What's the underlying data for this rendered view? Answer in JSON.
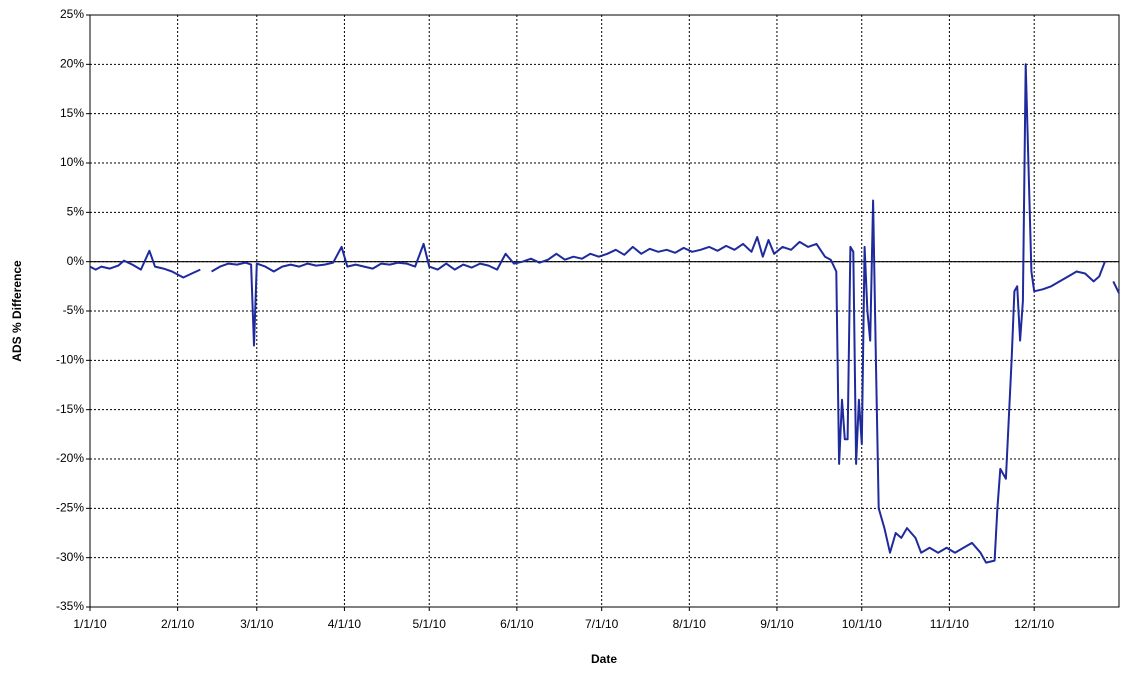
{
  "chart_data": {
    "type": "line",
    "xlabel": "Date",
    "ylabel": "ADS % Difference",
    "xlim": [
      "1/1/10",
      "12/31/10"
    ],
    "xticks": [
      "1/1/10",
      "2/1/10",
      "3/1/10",
      "4/1/10",
      "5/1/10",
      "6/1/10",
      "7/1/10",
      "8/1/10",
      "9/1/10",
      "10/1/10",
      "11/1/10",
      "12/1/10"
    ],
    "ylim": [
      -35,
      25
    ],
    "yticks": [
      {
        "value": -35,
        "label": "-35%"
      },
      {
        "value": -30,
        "label": "-30%"
      },
      {
        "value": -25,
        "label": "-25%"
      },
      {
        "value": -20,
        "label": "-20%"
      },
      {
        "value": -15,
        "label": "-15%"
      },
      {
        "value": -10,
        "label": "-10%"
      },
      {
        "value": -5,
        "label": "-5%"
      },
      {
        "value": 0,
        "label": "0%"
      },
      {
        "value": 5,
        "label": "5%"
      },
      {
        "value": 10,
        "label": "10%"
      },
      {
        "value": 15,
        "label": "15%"
      },
      {
        "value": 20,
        "label": "20%"
      },
      {
        "value": 25,
        "label": "25%"
      }
    ],
    "grid": true,
    "x": [
      "1/1/10",
      "1/3/10",
      "1/5/10",
      "1/8/10",
      "1/11/10",
      "1/13/10",
      "1/16/10",
      "1/19/10",
      "1/22/10",
      "1/24/10",
      "1/27/10",
      "1/30/10",
      "2/3/10",
      "2/6/10",
      "2/9/10",
      "2/11/10",
      "2/13/10",
      "2/16/10",
      "2/19/10",
      "2/22/10",
      "2/25/10",
      "2/27/10",
      "2/28/10",
      "3/1/10",
      "3/4/10",
      "3/7/10",
      "3/10/10",
      "3/13/10",
      "3/16/10",
      "3/19/10",
      "3/22/10",
      "3/25/10",
      "3/28/10",
      "3/31/10",
      "4/2/10",
      "4/5/10",
      "4/8/10",
      "4/11/10",
      "4/14/10",
      "4/17/10",
      "4/20/10",
      "4/23/10",
      "4/26/10",
      "4/29/10",
      "5/1/10",
      "5/4/10",
      "5/7/10",
      "5/10/10",
      "5/13/10",
      "5/16/10",
      "5/19/10",
      "5/22/10",
      "5/25/10",
      "5/28/10",
      "5/31/10",
      "6/3/10",
      "6/6/10",
      "6/9/10",
      "6/12/10",
      "6/15/10",
      "6/18/10",
      "6/21/10",
      "6/24/10",
      "6/27/10",
      "6/30/10",
      "7/3/10",
      "7/6/10",
      "7/9/10",
      "7/12/10",
      "7/15/10",
      "7/18/10",
      "7/21/10",
      "7/24/10",
      "7/27/10",
      "7/30/10",
      "8/2/10",
      "8/5/10",
      "8/8/10",
      "8/11/10",
      "8/14/10",
      "8/17/10",
      "8/20/10",
      "8/23/10",
      "8/25/10",
      "8/27/10",
      "8/29/10",
      "8/31/10",
      "9/3/10",
      "9/6/10",
      "9/9/10",
      "9/12/10",
      "9/15/10",
      "9/18/10",
      "9/20/10",
      "9/22/10",
      "9/23/10",
      "9/24/10",
      "9/25/10",
      "9/26/10",
      "9/27/10",
      "9/28/10",
      "9/29/10",
      "9/30/10",
      "10/1/10",
      "10/2/10",
      "10/3/10",
      "10/4/10",
      "10/5/10",
      "10/6/10",
      "10/7/10",
      "10/9/10",
      "10/11/10",
      "10/13/10",
      "10/15/10",
      "10/17/10",
      "10/20/10",
      "10/22/10",
      "10/25/10",
      "10/28/10",
      "10/31/10",
      "11/3/10",
      "11/6/10",
      "11/9/10",
      "11/12/10",
      "11/14/10",
      "11/17/10",
      "11/18/10",
      "11/19/10",
      "11/21/10",
      "11/23/10",
      "11/24/10",
      "11/25/10",
      "11/26/10",
      "11/27/10",
      "11/28/10",
      "11/30/10",
      "12/1/10",
      "12/4/10",
      "12/7/10",
      "12/10/10",
      "12/13/10",
      "12/16/10",
      "12/19/10",
      "12/22/10",
      "12/24/10",
      "12/26/10",
      "12/27/10",
      "12/29/10",
      "12/31/10"
    ],
    "series": [
      {
        "color": "#1f2a9c",
        "values": [
          -0.5,
          -0.8,
          -0.5,
          -0.7,
          -0.4,
          0.1,
          -0.3,
          -0.8,
          1.1,
          -0.5,
          -0.7,
          -1.0,
          -1.6,
          -1.2,
          -0.8,
          null,
          -1.0,
          -0.5,
          -0.2,
          -0.3,
          -0.1,
          -0.3,
          -8.5,
          -0.2,
          -0.5,
          -1.0,
          -0.5,
          -0.3,
          -0.5,
          -0.2,
          -0.4,
          -0.3,
          -0.1,
          1.5,
          -0.5,
          -0.3,
          -0.5,
          -0.7,
          -0.2,
          -0.3,
          -0.1,
          -0.2,
          -0.5,
          1.8,
          -0.5,
          -0.8,
          -0.2,
          -0.8,
          -0.3,
          -0.6,
          -0.2,
          -0.4,
          -0.8,
          0.8,
          -0.2,
          0.0,
          0.3,
          -0.1,
          0.2,
          0.8,
          0.2,
          0.5,
          0.3,
          0.8,
          0.5,
          0.8,
          1.2,
          0.7,
          1.5,
          0.8,
          1.3,
          1.0,
          1.2,
          0.9,
          1.4,
          1.0,
          1.2,
          1.5,
          1.1,
          1.6,
          1.2,
          1.8,
          1.0,
          2.5,
          0.5,
          2.2,
          0.8,
          1.5,
          1.2,
          2.0,
          1.5,
          1.8,
          0.5,
          0.2,
          -1.0,
          -20.5,
          -14,
          -18,
          -18,
          1.5,
          1.0,
          -20.5,
          -14,
          -18.5,
          1.5,
          -5,
          -8,
          6.2,
          -10,
          -25,
          -27,
          -29.5,
          -27.5,
          -28,
          -27,
          -28,
          -29.5,
          -29,
          -29.5,
          -29,
          -29.5,
          -29,
          -28.5,
          -29.5,
          -30.5,
          -30.3,
          -25,
          -21,
          -22,
          -10,
          -3,
          -2.5,
          -8,
          -4,
          20,
          -1,
          -3,
          -2.8,
          -2.5,
          -2,
          -1.5,
          -1.0,
          -1.2,
          -2.0,
          -1.5,
          0.0,
          null,
          -2.0,
          -3.2
        ]
      }
    ]
  }
}
